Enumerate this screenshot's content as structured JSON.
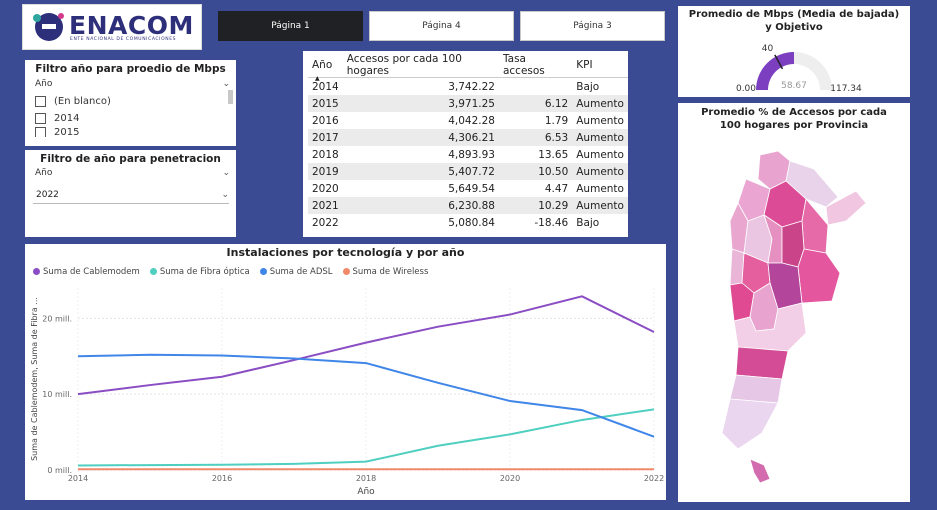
{
  "logo": {
    "name": "ENACOM",
    "subtitle": "ENTE NACIONAL DE COMUNICACIONES"
  },
  "tabs": [
    {
      "label": "Página 1",
      "active": true
    },
    {
      "label": "Página 4",
      "active": false
    },
    {
      "label": "Página 3",
      "active": false
    }
  ],
  "slicer_mbps": {
    "title": "Filtro año para proedio de Mbps",
    "field": "Año",
    "items": [
      "(En blanco)",
      "2014",
      "2015"
    ]
  },
  "slicer_pen": {
    "title": "Filtro de año para penetracion",
    "field": "Año",
    "selected": "2022"
  },
  "table": {
    "headers": [
      "Año",
      "Accesos por cada 100 hogares",
      "Tasa accesos",
      "KPI"
    ],
    "rows": [
      [
        "2014",
        "3,742.22",
        "",
        "Bajo"
      ],
      [
        "2015",
        "3,971.25",
        "6.12",
        "Aumento"
      ],
      [
        "2016",
        "4,042.28",
        "1.79",
        "Aumento"
      ],
      [
        "2017",
        "4,306.21",
        "6.53",
        "Aumento"
      ],
      [
        "2018",
        "4,893.93",
        "13.65",
        "Aumento"
      ],
      [
        "2019",
        "5,407.72",
        "10.50",
        "Aumento"
      ],
      [
        "2020",
        "5,649.54",
        "4.47",
        "Aumento"
      ],
      [
        "2021",
        "6,230.88",
        "10.29",
        "Aumento"
      ],
      [
        "2022",
        "5,080.84",
        "-18.46",
        "Bajo"
      ]
    ]
  },
  "gauge": {
    "title": "Promedio de Mbps (Media de bajada) y Objetivo",
    "min": "0.00",
    "max": "117.34",
    "target": "40",
    "value": "58.67",
    "value_num": 58.67,
    "max_num": 117.34,
    "target_num": 40,
    "fill_color": "#7b3fbf",
    "track_color": "#eeeeee"
  },
  "map": {
    "title": "Promedio % de Accesos por cada 100 hogares por Provincia"
  },
  "chart_data": {
    "type": "line",
    "title": "Instalaciones por tecnología y por año",
    "xlabel": "Año",
    "ylabel": "Suma de Cablemodem, Suma de Fibra ...",
    "x": [
      2014,
      2015,
      2016,
      2017,
      2018,
      2019,
      2020,
      2021,
      2022
    ],
    "xticks": [
      "2014",
      "2016",
      "2018",
      "2020",
      "2022"
    ],
    "yticks": [
      "0 mill.",
      "10 mill.",
      "20 mill."
    ],
    "ylim": [
      0,
      24
    ],
    "series": [
      {
        "name": "Suma de Cablemodem",
        "color": "#8a4dc4",
        "values": [
          10.0,
          11.2,
          12.3,
          14.5,
          16.8,
          18.9,
          20.5,
          22.9,
          18.2
        ]
      },
      {
        "name": "Suma de Fibra óptica",
        "color": "#4fcfc0",
        "values": [
          0.6,
          0.65,
          0.7,
          0.8,
          1.1,
          3.2,
          4.7,
          6.6,
          8.0
        ]
      },
      {
        "name": "Suma de ADSL",
        "color": "#3f86e8",
        "values": [
          15.0,
          15.2,
          15.1,
          14.7,
          14.1,
          11.5,
          9.1,
          7.9,
          4.4
        ]
      },
      {
        "name": "Suma de Wireless",
        "color": "#f08a6a",
        "values": [
          0.1,
          0.1,
          0.1,
          0.1,
          0.1,
          0.1,
          0.1,
          0.1,
          0.1
        ]
      }
    ],
    "grid": true,
    "legend": "top-left"
  }
}
